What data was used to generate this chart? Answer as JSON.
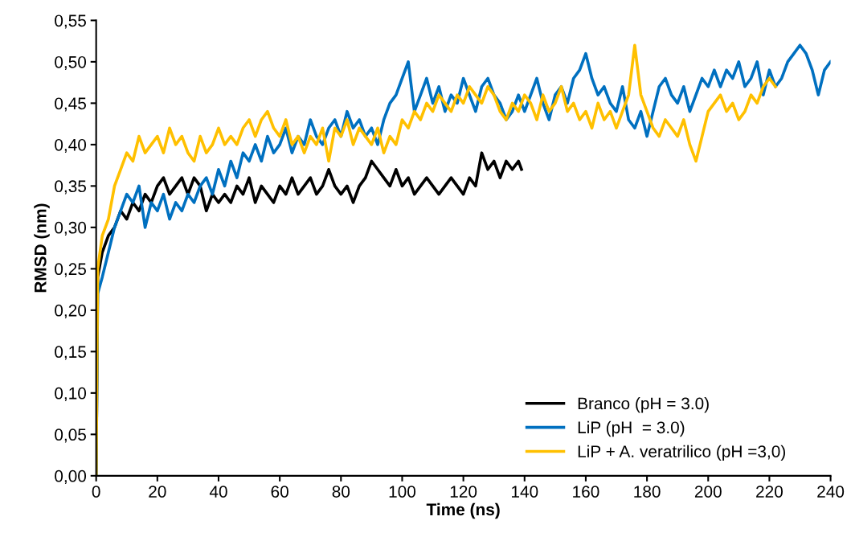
{
  "chart_data": {
    "type": "line",
    "xlabel": "Time (ns)",
    "ylabel": "RMSD (nm)",
    "xlim": [
      0,
      240
    ],
    "xticks": [
      0,
      20,
      40,
      60,
      80,
      100,
      120,
      140,
      160,
      180,
      200,
      220,
      240
    ],
    "ylim": [
      0,
      0.55
    ],
    "yticks": [
      {
        "value": 0,
        "label": "0,00"
      },
      {
        "value": 0.05,
        "label": "0,05"
      },
      {
        "value": 0.1,
        "label": "0,10"
      },
      {
        "value": 0.15,
        "label": "0,15"
      },
      {
        "value": 0.2,
        "label": "0,20"
      },
      {
        "value": 0.25,
        "label": "0,25"
      },
      {
        "value": 0.3,
        "label": "0,30"
      },
      {
        "value": 0.35,
        "label": "0,35"
      },
      {
        "value": 0.4,
        "label": "0,40"
      },
      {
        "value": 0.45,
        "label": "0,45"
      },
      {
        "value": 0.5,
        "label": "0,50"
      },
      {
        "value": 0.55,
        "label": "0,55"
      }
    ],
    "grid": false,
    "legend": "bottom right",
    "marker": "none",
    "line_style": "solid",
    "series": [
      {
        "name": "Branco (pH = 3.0)",
        "color": "#000000",
        "x": [
          0,
          0.5,
          2,
          4,
          6,
          8,
          10,
          12,
          14,
          16,
          18,
          20,
          22,
          24,
          26,
          28,
          30,
          32,
          34,
          36,
          38,
          40,
          42,
          44,
          46,
          48,
          50,
          52,
          54,
          56,
          58,
          60,
          62,
          64,
          66,
          68,
          70,
          72,
          74,
          76,
          78,
          80,
          82,
          84,
          86,
          88,
          90,
          92,
          94,
          96,
          98,
          100,
          102,
          104,
          106,
          108,
          110,
          112,
          114,
          116,
          118,
          120,
          122,
          124,
          126,
          128,
          130,
          132,
          134,
          136,
          138,
          139
        ],
        "values": [
          0.0,
          0.24,
          0.27,
          0.29,
          0.3,
          0.32,
          0.31,
          0.33,
          0.32,
          0.34,
          0.33,
          0.35,
          0.36,
          0.34,
          0.35,
          0.36,
          0.34,
          0.36,
          0.35,
          0.32,
          0.34,
          0.33,
          0.34,
          0.33,
          0.35,
          0.34,
          0.36,
          0.33,
          0.35,
          0.34,
          0.33,
          0.35,
          0.34,
          0.36,
          0.34,
          0.35,
          0.36,
          0.34,
          0.35,
          0.37,
          0.35,
          0.34,
          0.35,
          0.33,
          0.35,
          0.36,
          0.38,
          0.37,
          0.36,
          0.35,
          0.37,
          0.35,
          0.36,
          0.34,
          0.35,
          0.36,
          0.35,
          0.34,
          0.35,
          0.36,
          0.35,
          0.34,
          0.36,
          0.35,
          0.39,
          0.37,
          0.38,
          0.36,
          0.38,
          0.37,
          0.38,
          0.37
        ]
      },
      {
        "name": "LiP (pH  = 3.0)",
        "color": "#0070c0",
        "x": [
          0,
          0.5,
          2,
          4,
          6,
          8,
          10,
          12,
          14,
          16,
          18,
          20,
          22,
          24,
          26,
          28,
          30,
          32,
          34,
          36,
          38,
          40,
          42,
          44,
          46,
          48,
          50,
          52,
          54,
          56,
          58,
          60,
          62,
          64,
          66,
          68,
          70,
          72,
          74,
          76,
          78,
          80,
          82,
          84,
          86,
          88,
          90,
          92,
          94,
          96,
          98,
          100,
          102,
          104,
          106,
          108,
          110,
          112,
          114,
          116,
          118,
          120,
          122,
          124,
          126,
          128,
          130,
          132,
          134,
          136,
          138,
          140,
          142,
          144,
          146,
          148,
          150,
          152,
          154,
          156,
          158,
          160,
          162,
          164,
          166,
          168,
          170,
          172,
          174,
          176,
          178,
          180,
          182,
          184,
          186,
          188,
          190,
          192,
          194,
          196,
          198,
          200,
          202,
          204,
          206,
          208,
          210,
          212,
          214,
          216,
          218,
          220,
          222,
          224,
          226,
          228,
          230,
          232,
          234,
          236,
          238,
          240
        ],
        "values": [
          0.0,
          0.22,
          0.24,
          0.27,
          0.3,
          0.32,
          0.34,
          0.33,
          0.35,
          0.3,
          0.33,
          0.32,
          0.34,
          0.31,
          0.33,
          0.32,
          0.34,
          0.33,
          0.35,
          0.36,
          0.34,
          0.37,
          0.35,
          0.38,
          0.36,
          0.39,
          0.38,
          0.4,
          0.38,
          0.41,
          0.39,
          0.4,
          0.42,
          0.39,
          0.41,
          0.4,
          0.43,
          0.41,
          0.4,
          0.42,
          0.43,
          0.41,
          0.44,
          0.42,
          0.43,
          0.41,
          0.42,
          0.4,
          0.43,
          0.45,
          0.46,
          0.48,
          0.5,
          0.44,
          0.46,
          0.48,
          0.45,
          0.47,
          0.44,
          0.46,
          0.45,
          0.48,
          0.46,
          0.44,
          0.47,
          0.48,
          0.46,
          0.45,
          0.43,
          0.44,
          0.46,
          0.44,
          0.46,
          0.48,
          0.45,
          0.43,
          0.46,
          0.47,
          0.45,
          0.48,
          0.49,
          0.51,
          0.48,
          0.46,
          0.47,
          0.45,
          0.44,
          0.47,
          0.43,
          0.42,
          0.44,
          0.41,
          0.44,
          0.47,
          0.48,
          0.46,
          0.45,
          0.47,
          0.44,
          0.46,
          0.48,
          0.47,
          0.49,
          0.47,
          0.49,
          0.48,
          0.5,
          0.47,
          0.48,
          0.5,
          0.46,
          0.49,
          0.47,
          0.48,
          0.5,
          0.51,
          0.52,
          0.51,
          0.49,
          0.46,
          0.49,
          0.5
        ]
      },
      {
        "name": "LiP + A. veratrilico (pH =3,0)",
        "color": "#ffc000",
        "x": [
          0,
          0.5,
          2,
          4,
          6,
          8,
          10,
          12,
          14,
          16,
          18,
          20,
          22,
          24,
          26,
          28,
          30,
          32,
          34,
          36,
          38,
          40,
          42,
          44,
          46,
          48,
          50,
          52,
          54,
          56,
          58,
          60,
          62,
          64,
          66,
          68,
          70,
          72,
          74,
          76,
          78,
          80,
          82,
          84,
          86,
          88,
          90,
          92,
          94,
          96,
          98,
          100,
          102,
          104,
          106,
          108,
          110,
          112,
          114,
          116,
          118,
          120,
          122,
          124,
          126,
          128,
          130,
          132,
          134,
          136,
          138,
          140,
          142,
          144,
          146,
          148,
          150,
          152,
          154,
          156,
          158,
          160,
          162,
          164,
          166,
          168,
          170,
          172,
          174,
          176,
          178,
          180,
          182,
          184,
          186,
          188,
          190,
          192,
          194,
          196,
          198,
          200,
          202,
          204,
          206,
          208,
          210,
          212,
          214,
          216,
          218,
          220,
          222
        ],
        "values": [
          0.0,
          0.25,
          0.29,
          0.31,
          0.35,
          0.37,
          0.39,
          0.38,
          0.41,
          0.39,
          0.4,
          0.41,
          0.39,
          0.42,
          0.4,
          0.41,
          0.39,
          0.38,
          0.41,
          0.39,
          0.4,
          0.42,
          0.4,
          0.41,
          0.4,
          0.42,
          0.43,
          0.41,
          0.43,
          0.44,
          0.42,
          0.41,
          0.43,
          0.4,
          0.41,
          0.39,
          0.41,
          0.4,
          0.42,
          0.38,
          0.42,
          0.41,
          0.43,
          0.4,
          0.42,
          0.41,
          0.4,
          0.42,
          0.39,
          0.41,
          0.4,
          0.43,
          0.42,
          0.44,
          0.43,
          0.45,
          0.44,
          0.46,
          0.45,
          0.44,
          0.46,
          0.45,
          0.47,
          0.46,
          0.45,
          0.47,
          0.46,
          0.44,
          0.43,
          0.45,
          0.44,
          0.46,
          0.45,
          0.43,
          0.46,
          0.44,
          0.45,
          0.47,
          0.44,
          0.45,
          0.43,
          0.44,
          0.42,
          0.45,
          0.43,
          0.44,
          0.42,
          0.44,
          0.46,
          0.52,
          0.46,
          0.44,
          0.42,
          0.41,
          0.43,
          0.42,
          0.41,
          0.43,
          0.4,
          0.38,
          0.41,
          0.44,
          0.45,
          0.46,
          0.44,
          0.45,
          0.43,
          0.44,
          0.46,
          0.45,
          0.47,
          0.48,
          0.47
        ]
      }
    ]
  }
}
